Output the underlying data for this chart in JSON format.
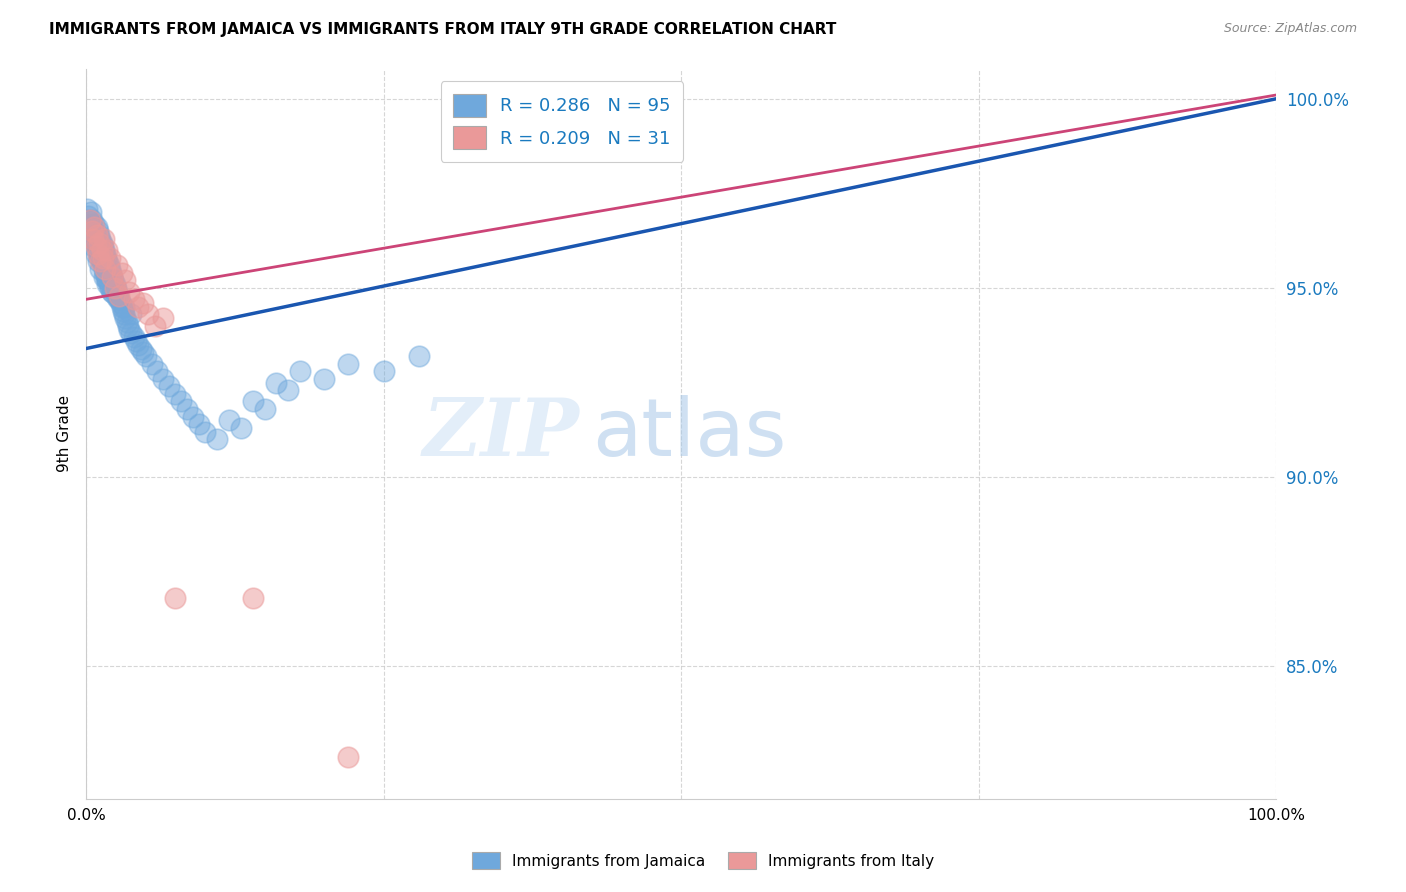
{
  "title": "IMMIGRANTS FROM JAMAICA VS IMMIGRANTS FROM ITALY 9TH GRADE CORRELATION CHART",
  "source": "Source: ZipAtlas.com",
  "ylabel": "9th Grade",
  "xlim": [
    0.0,
    1.0
  ],
  "ylim": [
    0.815,
    1.008
  ],
  "ytick_values": [
    0.85,
    0.9,
    0.95,
    1.0
  ],
  "legend_r1": "R = 0.286",
  "legend_n1": "N = 95",
  "legend_r2": "R = 0.209",
  "legend_n2": "N = 31",
  "blue_color": "#6fa8dc",
  "pink_color": "#ea9999",
  "blue_line_color": "#1a56b0",
  "pink_line_color": "#cc4477",
  "watermark_zip": "ZIP",
  "watermark_atlas": "atlas",
  "jamaica_x": [
    0.002,
    0.003,
    0.004,
    0.005,
    0.005,
    0.006,
    0.007,
    0.007,
    0.008,
    0.009,
    0.009,
    0.01,
    0.01,
    0.011,
    0.011,
    0.012,
    0.012,
    0.013,
    0.013,
    0.014,
    0.014,
    0.015,
    0.015,
    0.016,
    0.016,
    0.017,
    0.017,
    0.018,
    0.018,
    0.019,
    0.019,
    0.02,
    0.02,
    0.021,
    0.022,
    0.022,
    0.023,
    0.024,
    0.025,
    0.025,
    0.026,
    0.027,
    0.028,
    0.029,
    0.03,
    0.031,
    0.032,
    0.033,
    0.034,
    0.035,
    0.036,
    0.038,
    0.04,
    0.042,
    0.044,
    0.046,
    0.048,
    0.05,
    0.055,
    0.06,
    0.065,
    0.07,
    0.075,
    0.08,
    0.085,
    0.09,
    0.095,
    0.1,
    0.11,
    0.12,
    0.13,
    0.14,
    0.15,
    0.16,
    0.17,
    0.18,
    0.2,
    0.22,
    0.25,
    0.28,
    0.001,
    0.002,
    0.003,
    0.004,
    0.005,
    0.006,
    0.008,
    0.01,
    0.012,
    0.015,
    0.018,
    0.022,
    0.027,
    0.032,
    0.038
  ],
  "jamaica_y": [
    0.968,
    0.966,
    0.97,
    0.964,
    0.968,
    0.965,
    0.963,
    0.967,
    0.962,
    0.966,
    0.961,
    0.965,
    0.96,
    0.964,
    0.959,
    0.963,
    0.958,
    0.962,
    0.957,
    0.961,
    0.956,
    0.96,
    0.955,
    0.959,
    0.954,
    0.958,
    0.953,
    0.957,
    0.952,
    0.956,
    0.951,
    0.955,
    0.95,
    0.954,
    0.953,
    0.949,
    0.952,
    0.951,
    0.95,
    0.948,
    0.949,
    0.948,
    0.947,
    0.946,
    0.945,
    0.944,
    0.943,
    0.942,
    0.941,
    0.94,
    0.939,
    0.938,
    0.937,
    0.936,
    0.935,
    0.934,
    0.933,
    0.932,
    0.93,
    0.928,
    0.926,
    0.924,
    0.922,
    0.92,
    0.918,
    0.916,
    0.914,
    0.912,
    0.91,
    0.915,
    0.913,
    0.92,
    0.918,
    0.925,
    0.923,
    0.928,
    0.926,
    0.93,
    0.928,
    0.932,
    0.971,
    0.969,
    0.967,
    0.965,
    0.963,
    0.961,
    0.959,
    0.957,
    0.955,
    0.953,
    0.951,
    0.949,
    0.947,
    0.945,
    0.943
  ],
  "italy_x": [
    0.003,
    0.005,
    0.006,
    0.007,
    0.008,
    0.009,
    0.01,
    0.011,
    0.012,
    0.013,
    0.014,
    0.015,
    0.016,
    0.018,
    0.02,
    0.022,
    0.024,
    0.026,
    0.028,
    0.03,
    0.033,
    0.036,
    0.04,
    0.044,
    0.048,
    0.052,
    0.058,
    0.065,
    0.075,
    0.14,
    0.22
  ],
  "italy_y": [
    0.968,
    0.965,
    0.963,
    0.966,
    0.961,
    0.964,
    0.959,
    0.962,
    0.957,
    0.96,
    0.958,
    0.963,
    0.955,
    0.96,
    0.958,
    0.953,
    0.95,
    0.956,
    0.948,
    0.954,
    0.952,
    0.949,
    0.947,
    0.945,
    0.946,
    0.943,
    0.94,
    0.942,
    0.868,
    0.868,
    0.826
  ],
  "blue_trendline_x": [
    0.0,
    1.0
  ],
  "blue_trendline_y": [
    0.934,
    1.0
  ],
  "pink_trendline_x": [
    0.0,
    1.0
  ],
  "pink_trendline_y": [
    0.947,
    1.001
  ]
}
